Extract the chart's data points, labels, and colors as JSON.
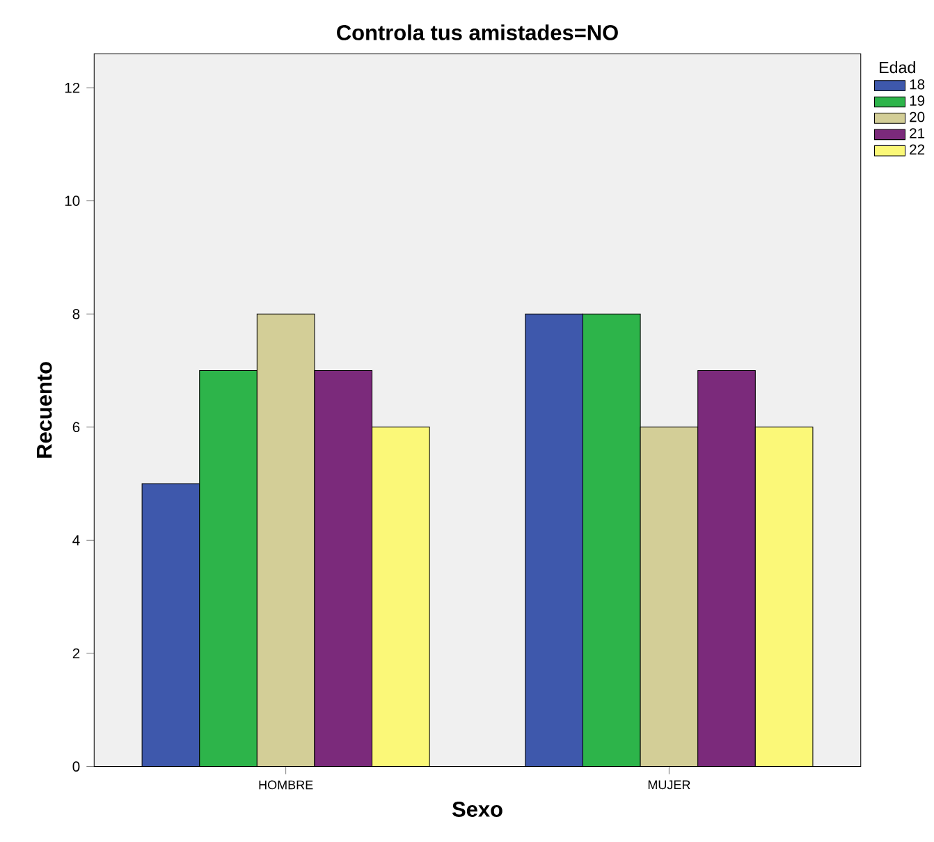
{
  "chart_data": {
    "type": "bar",
    "title": "Controla tus amistades=NO",
    "xlabel": "Sexo",
    "ylabel": "Recuento",
    "legend_title": "Edad",
    "categories": [
      "HOMBRE",
      "MUJER"
    ],
    "ylim": [
      0,
      12.6
    ],
    "yticks": [
      0,
      2,
      4,
      6,
      8,
      10,
      12
    ],
    "grid": false,
    "legend": "top right",
    "series": [
      {
        "name": "18",
        "color": "#3e58ac",
        "values": [
          5,
          8
        ]
      },
      {
        "name": "19",
        "color": "#2db44a",
        "values": [
          7,
          8
        ]
      },
      {
        "name": "20",
        "color": "#d3ce97",
        "values": [
          8,
          6
        ]
      },
      {
        "name": "21",
        "color": "#7b2a7b",
        "values": [
          7,
          7
        ]
      },
      {
        "name": "22",
        "color": "#fbf878",
        "values": [
          6,
          6
        ]
      }
    ]
  }
}
